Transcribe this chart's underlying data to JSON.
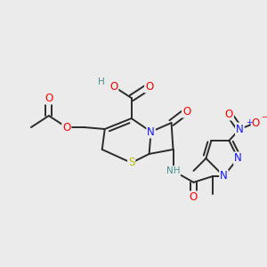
{
  "background_color": "#ebebeb",
  "bond_color": "#2a2a2a",
  "bond_width": 1.4,
  "atom_colors": {
    "C": "#2a2a2a",
    "N": "#1414ff",
    "O": "#ff0000",
    "S": "#b8b800",
    "H": "#4a9090"
  },
  "font_size": 7.5,
  "fig_width": 3.0,
  "fig_height": 3.0,
  "dpi": 100
}
